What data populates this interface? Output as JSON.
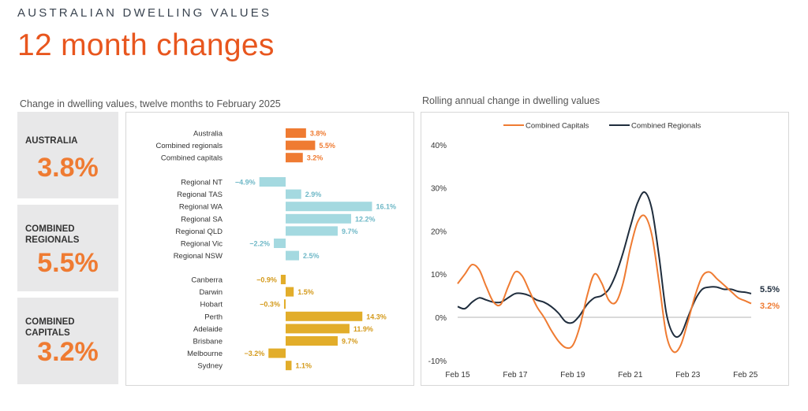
{
  "header": {
    "eyebrow": "AUSTRALIAN DWELLING VALUES",
    "title": "12 month changes"
  },
  "left_section_title": "Change in dwelling values, twelve months to February 2025",
  "right_section_title": "Rolling annual change in dwelling values",
  "cards": [
    {
      "label": "AUSTRALIA",
      "value": "3.8%"
    },
    {
      "label": "COMBINED REGIONALS",
      "value": "5.5%"
    },
    {
      "label": "COMBINED CAPITALS",
      "value": "3.2%"
    }
  ],
  "colors": {
    "orange": "#ef7b32",
    "teal": "#a4d9e0",
    "teal_text": "#6fb8c7",
    "gold": "#e2ad2a",
    "gold_text": "#d49a1b",
    "navy": "#1f2d3d"
  },
  "chart_data": [
    {
      "type": "bar",
      "orientation": "horizontal",
      "title": "Change in dwelling values, twelve months to February 2025",
      "unit": "%",
      "groups": [
        {
          "name": "National",
          "color_key": "orange",
          "categories": [
            "Australia",
            "Combined regionals",
            "Combined capitals"
          ],
          "values": [
            3.8,
            5.5,
            3.2
          ],
          "labels": [
            "3.8%",
            "5.5%",
            "3.2%"
          ]
        },
        {
          "name": "Regional",
          "color_key": "teal",
          "categories": [
            "Regional NT",
            "Regional TAS",
            "Regional WA",
            "Regional SA",
            "Regional QLD",
            "Regional Vic",
            "Regional NSW"
          ],
          "values": [
            -4.9,
            2.9,
            16.1,
            12.2,
            9.7,
            -2.2,
            2.5
          ],
          "labels": [
            "−4.9%",
            "2.9%",
            "16.1%",
            "12.2%",
            "9.7%",
            "−2.2%",
            "2.5%"
          ]
        },
        {
          "name": "Capitals",
          "color_key": "gold",
          "categories": [
            "Canberra",
            "Darwin",
            "Hobart",
            "Perth",
            "Adelaide",
            "Brisbane",
            "Melbourne",
            "Sydney"
          ],
          "values": [
            -0.9,
            1.5,
            -0.3,
            14.3,
            11.9,
            9.7,
            -3.2,
            1.1
          ],
          "labels": [
            "−0.9%",
            "1.5%",
            "−0.3%",
            "14.3%",
            "11.9%",
            "9.7%",
            "−3.2%",
            "1.1%"
          ]
        }
      ]
    },
    {
      "type": "line",
      "title": "Rolling annual change in dwelling values",
      "xlim": [
        2015,
        2025.2
      ],
      "ylim": [
        -10,
        40
      ],
      "y_ticks": [
        40,
        30,
        20,
        10,
        0,
        -10
      ],
      "y_tick_labels": [
        "40%",
        "30%",
        "20%",
        "10%",
        "0%",
        "-10%"
      ],
      "x_ticks": [
        2015,
        2017,
        2019,
        2021,
        2023,
        2025
      ],
      "x_tick_labels": [
        "Feb 15",
        "Feb 17",
        "Feb 19",
        "Feb 21",
        "Feb 23",
        "Feb 25"
      ],
      "series": [
        {
          "name": "Combined Capitals",
          "color_key": "orange",
          "end_label": "3.2%",
          "x": [
            2015.0,
            2015.25,
            2015.5,
            2015.75,
            2016.0,
            2016.25,
            2016.5,
            2016.75,
            2017.0,
            2017.25,
            2017.5,
            2017.75,
            2018.0,
            2018.25,
            2018.5,
            2018.75,
            2019.0,
            2019.25,
            2019.5,
            2019.75,
            2020.0,
            2020.25,
            2020.5,
            2020.75,
            2021.0,
            2021.25,
            2021.5,
            2021.75,
            2022.0,
            2022.25,
            2022.5,
            2022.75,
            2023.0,
            2023.25,
            2023.5,
            2023.75,
            2024.0,
            2024.25,
            2024.5,
            2024.75,
            2025.0,
            2025.2
          ],
          "y": [
            7.8,
            10,
            12.2,
            11,
            7,
            3.5,
            3,
            7,
            10.5,
            9.5,
            6,
            2.5,
            0,
            -3,
            -5.5,
            -7,
            -6.5,
            -2,
            5,
            10,
            8,
            4,
            3.5,
            8,
            16,
            22,
            23.5,
            19,
            8,
            -4,
            -8,
            -6.5,
            -1,
            5,
            9.5,
            10.5,
            9,
            7.5,
            6,
            4.5,
            3.8,
            3.2
          ]
        },
        {
          "name": "Combined Regionals",
          "color_key": "navy",
          "end_label": "5.5%",
          "x": [
            2015.0,
            2015.25,
            2015.5,
            2015.75,
            2016.0,
            2016.25,
            2016.5,
            2016.75,
            2017.0,
            2017.25,
            2017.5,
            2017.75,
            2018.0,
            2018.25,
            2018.5,
            2018.75,
            2019.0,
            2019.25,
            2019.5,
            2019.75,
            2020.0,
            2020.25,
            2020.5,
            2020.75,
            2021.0,
            2021.25,
            2021.5,
            2021.75,
            2022.0,
            2022.25,
            2022.5,
            2022.75,
            2023.0,
            2023.25,
            2023.5,
            2023.75,
            2024.0,
            2024.25,
            2024.5,
            2024.75,
            2025.0,
            2025.2
          ],
          "y": [
            2.5,
            2,
            3.5,
            4.5,
            4,
            3.5,
            3.5,
            4.5,
            5.5,
            5.5,
            5,
            4,
            3.5,
            2.5,
            1,
            -1,
            -1.2,
            0.5,
            3,
            4.5,
            5,
            6.5,
            10,
            15,
            21,
            26.5,
            29,
            25,
            14,
            1,
            -4,
            -4,
            0,
            4,
            6.5,
            7,
            7,
            6.5,
            6.5,
            6,
            5.8,
            5.5
          ]
        }
      ]
    }
  ]
}
